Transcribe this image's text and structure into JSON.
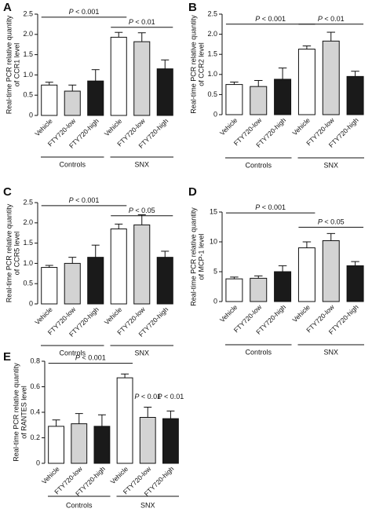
{
  "chart_data": [
    {
      "type": "bar",
      "panel": "A",
      "ylabel": [
        "Real-time PCR relative quantity",
        "of CCR1 level"
      ],
      "categories": [
        "Vehicle",
        "FTY720-low",
        "FTY720-high",
        "Vehicle",
        "FTY720-low",
        "FTY720-high"
      ],
      "values": [
        0.75,
        0.6,
        0.85,
        1.93,
        1.82,
        1.15
      ],
      "errors": [
        0.07,
        0.15,
        0.28,
        0.12,
        0.22,
        0.22
      ],
      "colors": [
        "#ffffff",
        "#d3d3d3",
        "#1a1a1a",
        "#ffffff",
        "#d3d3d3",
        "#1a1a1a"
      ],
      "groups": [
        "Controls",
        "SNX"
      ],
      "annotations": [
        "P < 0.001",
        "P < 0.01"
      ],
      "ylim": [
        0,
        2.5
      ],
      "yticks": [
        0,
        0.5,
        {
          "value": 1,
          "label": "1.0"
        },
        1.5,
        {
          "value": 2,
          "label": "2.0"
        },
        2.5
      ]
    },
    {
      "type": "bar",
      "panel": "B",
      "ylabel": [
        "Real-time PCR relative quantity",
        "of CCR2 level"
      ],
      "categories": [
        "Vehicle",
        "FTY720-low",
        "FTY720-high",
        "Vehicle",
        "FTY720-low",
        "FTY720-high"
      ],
      "values": [
        0.75,
        0.7,
        0.88,
        1.63,
        1.83,
        0.95
      ],
      "errors": [
        0.06,
        0.15,
        0.28,
        0.08,
        0.22,
        0.13
      ],
      "colors": [
        "#ffffff",
        "#d3d3d3",
        "#1a1a1a",
        "#ffffff",
        "#d3d3d3",
        "#1a1a1a"
      ],
      "groups": [
        "Controls",
        "SNX"
      ],
      "annotations": [
        "P < 0.001",
        "P < 0.01"
      ],
      "ylim": [
        0,
        2.5
      ],
      "yticks": [
        0,
        0.5,
        {
          "value": 1,
          "label": "1.0"
        },
        1.5,
        {
          "value": 2,
          "label": "2.0"
        },
        2.5
      ]
    },
    {
      "type": "bar",
      "panel": "C",
      "ylabel": [
        "Real-time PCR relative quantity",
        "of CCR5 level"
      ],
      "categories": [
        "Vehicle",
        "FTY720-low",
        "FTY720-high",
        "Vehicle",
        "FTY720-low",
        "FTY720-high"
      ],
      "values": [
        0.9,
        1.0,
        1.15,
        1.85,
        1.95,
        1.15
      ],
      "errors": [
        0.05,
        0.15,
        0.3,
        0.12,
        0.25,
        0.15
      ],
      "colors": [
        "#ffffff",
        "#d3d3d3",
        "#1a1a1a",
        "#ffffff",
        "#d3d3d3",
        "#1a1a1a"
      ],
      "groups": [
        "Controls",
        "SNX"
      ],
      "annotations": [
        "P < 0.001",
        "P < 0.05"
      ],
      "ylim": [
        0,
        2.5
      ],
      "yticks": [
        0,
        0.5,
        {
          "value": 1,
          "label": "1.0"
        },
        1.5,
        {
          "value": 2,
          "label": "2.0"
        },
        2.5
      ]
    },
    {
      "type": "bar",
      "panel": "D",
      "ylabel": [
        "Real-time PCR relative quantity",
        "of MCP-1 level"
      ],
      "categories": [
        "Vehicle",
        "FTY720-low",
        "FTY720-high",
        "Vehicle",
        "FTY720-low",
        "FTY720-high"
      ],
      "values": [
        3.8,
        3.9,
        5.0,
        9.0,
        10.2,
        6.0
      ],
      "errors": [
        0.3,
        0.4,
        1.0,
        1.0,
        1.2,
        0.7
      ],
      "colors": [
        "#ffffff",
        "#d3d3d3",
        "#1a1a1a",
        "#ffffff",
        "#d3d3d3",
        "#1a1a1a"
      ],
      "groups": [
        "Controls",
        "SNX"
      ],
      "annotations": [
        "P < 0.001",
        "P < 0.05"
      ],
      "ylim": [
        0,
        15
      ],
      "yticks": [
        0,
        5,
        10,
        15
      ]
    },
    {
      "type": "bar",
      "panel": "E",
      "ylabel": [
        "Real-time PCR relative quantity",
        "of RANTES level"
      ],
      "categories": [
        "Vehicle",
        "FTY720-low",
        "FTY720-high",
        "Vehicle",
        "FTY720-low",
        "FTY720-high"
      ],
      "values": [
        0.29,
        0.31,
        0.29,
        0.67,
        0.36,
        0.35
      ],
      "errors": [
        0.05,
        0.08,
        0.09,
        0.03,
        0.08,
        0.06
      ],
      "colors": [
        "#ffffff",
        "#d3d3d3",
        "#1a1a1a",
        "#ffffff",
        "#d3d3d3",
        "#1a1a1a"
      ],
      "groups": [
        "Controls",
        "SNX"
      ],
      "annotations": [
        "P < 0.001",
        "P < 0.01",
        "P < 0.01"
      ],
      "ylim": [
        0,
        0.8
      ],
      "yticks": [
        0,
        0.2,
        0.4,
        0.6,
        0.8
      ]
    }
  ]
}
